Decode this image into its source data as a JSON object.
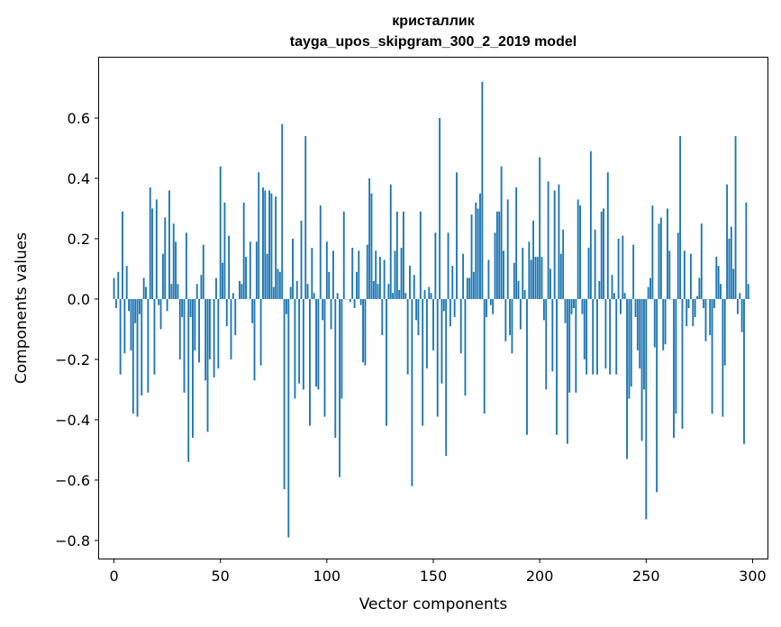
{
  "chart_data": {
    "type": "bar",
    "title": "кристаллик",
    "subtitle": "tayga_upos_skipgram_300_2_2019 model",
    "xlabel": "Vector components",
    "ylabel": "Components values",
    "xlim": [
      -7,
      307
    ],
    "ylim": [
      -0.86,
      0.8
    ],
    "xticks": [
      0,
      50,
      100,
      150,
      200,
      250,
      300
    ],
    "yticks": [
      -0.8,
      -0.6,
      -0.4,
      -0.2,
      0.0,
      0.2,
      0.4,
      0.6
    ],
    "ytick_labels": [
      "−0.8",
      "−0.6",
      "−0.4",
      "−0.2",
      "0.0",
      "0.2",
      "0.4",
      "0.6"
    ],
    "bar_color": "#1f77b4",
    "grid": false,
    "values": [
      0.07,
      -0.03,
      0.09,
      -0.25,
      0.29,
      -0.18,
      0.11,
      -0.04,
      -0.17,
      -0.38,
      -0.08,
      -0.39,
      -0.05,
      -0.32,
      0.07,
      0.04,
      -0.31,
      0.37,
      0.3,
      -0.25,
      0.33,
      -0.02,
      -0.1,
      0.15,
      0.27,
      -0.04,
      0.36,
      0.05,
      0.25,
      0.19,
      0.05,
      -0.2,
      -0.06,
      -0.31,
      0.22,
      -0.54,
      -0.06,
      -0.46,
      -0.17,
      0.05,
      -0.21,
      0.08,
      0.18,
      -0.27,
      -0.44,
      -0.2,
      0.0,
      -0.26,
      0.07,
      -0.23,
      0.44,
      0.12,
      0.32,
      -0.09,
      0.21,
      -0.2,
      0.02,
      -0.12,
      0.0,
      0.06,
      0.05,
      0.32,
      0.14,
      0.0,
      0.19,
      -0.08,
      -0.27,
      0.19,
      0.42,
      -0.22,
      0.37,
      0.36,
      0.15,
      0.36,
      0.35,
      0.04,
      0.34,
      0.1,
      0.09,
      0.58,
      -0.63,
      -0.05,
      -0.79,
      0.04,
      0.2,
      -0.33,
      0.06,
      -0.28,
      0.26,
      -0.3,
      0.54,
      0.05,
      -0.42,
      0.17,
      0.02,
      -0.29,
      -0.3,
      0.31,
      -0.07,
      -0.39,
      0.19,
      0.09,
      -0.1,
      0.16,
      -0.46,
      0.02,
      -0.59,
      -0.33,
      0.29,
      0.0,
      0.0,
      -0.01,
      0.17,
      -0.03,
      0.09,
      0.16,
      -0.02,
      -0.21,
      -0.22,
      0.18,
      0.4,
      0.35,
      0.06,
      0.16,
      0.05,
      0.14,
      -0.12,
      0.13,
      -0.42,
      0.05,
      0.38,
      0.02,
      0.16,
      0.29,
      0.03,
      0.17,
      0.29,
      0.02,
      -0.25,
      0.11,
      -0.62,
      0.08,
      -0.07,
      -0.12,
      0.29,
      -0.42,
      0.03,
      -0.23,
      0.04,
      0.02,
      -0.17,
      0.22,
      -0.39,
      0.6,
      -0.28,
      -0.04,
      -0.52,
      0.22,
      -0.09,
      0.11,
      -0.06,
      0.42,
      0.0,
      -0.18,
      0.15,
      -0.32,
      0.07,
      0.07,
      0.28,
      0.09,
      0.32,
      0.3,
      0.35,
      0.72,
      -0.38,
      -0.06,
      0.13,
      -0.02,
      -0.05,
      0.22,
      0.29,
      0.29,
      0.44,
      0.16,
      -0.14,
      0.33,
      -0.12,
      -0.18,
      0.12,
      0.37,
      0.06,
      -0.1,
      0.17,
      0.03,
      -0.45,
      0.19,
      0.13,
      0.26,
      0.14,
      0.14,
      0.47,
      0.14,
      -0.07,
      -0.3,
      0.39,
      0.1,
      -0.24,
      0.36,
      -0.45,
      0.38,
      0.15,
      0.23,
      -0.08,
      -0.48,
      -0.31,
      -0.05,
      -0.03,
      -0.31,
      0.33,
      0.31,
      -0.05,
      -0.2,
      -0.25,
      0.17,
      0.49,
      -0.25,
      0.23,
      -0.25,
      0.06,
      0.29,
      0.3,
      -0.23,
      0.42,
      -0.25,
      0.08,
      0.02,
      -0.25,
      0.2,
      -0.05,
      0.21,
      0.02,
      -0.53,
      -0.33,
      -0.29,
      0.18,
      -0.06,
      -0.17,
      -0.23,
      -0.47,
      -0.3,
      -0.73,
      0.04,
      0.07,
      0.31,
      -0.16,
      -0.64,
      0.25,
      0.27,
      -0.17,
      -0.15,
      0.3,
      0.16,
      0.0,
      -0.46,
      -0.38,
      0.22,
      0.54,
      -0.43,
      0.16,
      -0.09,
      -0.03,
      0.15,
      -0.09,
      -0.06,
      0.01,
      0.07,
      0.25,
      -0.03,
      -0.14,
      0.0,
      -0.12,
      -0.38,
      -0.03,
      0.14,
      0.11,
      0.05,
      -0.39,
      -0.22,
      0.38,
      0.2,
      0.24,
      0.1,
      0.54,
      -0.05,
      0.02,
      -0.11,
      -0.48,
      0.32,
      0.05
    ]
  }
}
